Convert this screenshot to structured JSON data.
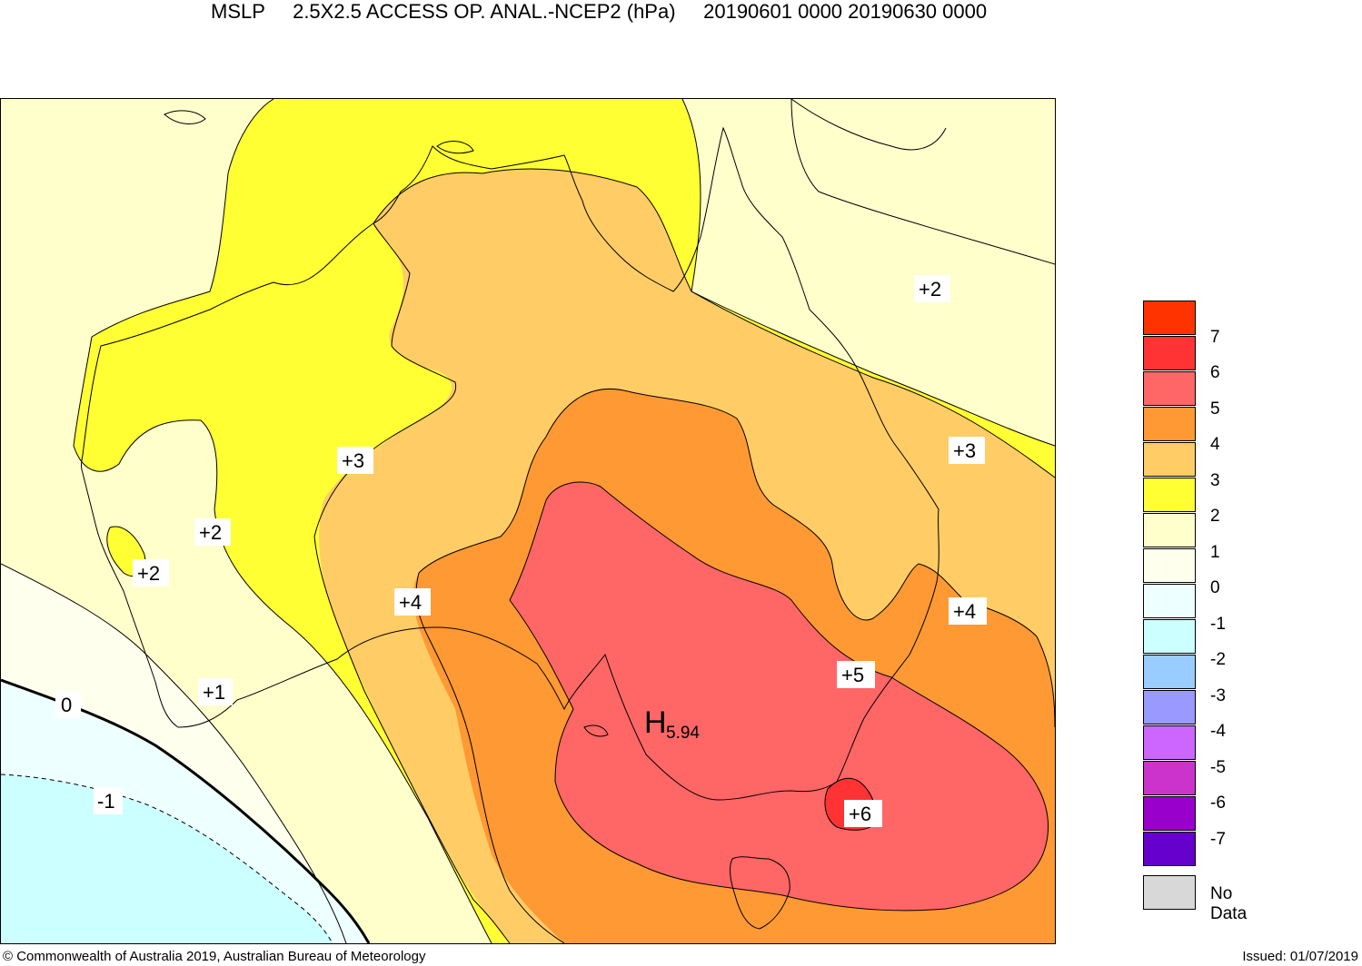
{
  "header": {
    "variable": "MSLP",
    "product": "2.5X2.5 ACCESS OP. ANAL.-NCEP2 (hPa)",
    "period": "20190601 0000 20190630 0000"
  },
  "map": {
    "region": "Australia",
    "contour_labels": [
      "+2",
      "+3",
      "+2",
      "+2",
      "+4",
      "+1",
      "0",
      "-1",
      "+3",
      "+4",
      "+5",
      "+6"
    ],
    "high": {
      "letter": "H",
      "value": "5.94"
    }
  },
  "legend": {
    "items": [
      {
        "label": "7",
        "color": "#ff3300"
      },
      {
        "label": "6",
        "color": "#ff3333"
      },
      {
        "label": "5",
        "color": "#ff6666"
      },
      {
        "label": "4",
        "color": "#ff9933"
      },
      {
        "label": "3",
        "color": "#ffcc66"
      },
      {
        "label": "2",
        "color": "#ffff33"
      },
      {
        "label": "1",
        "color": "#ffffcc"
      },
      {
        "label": "0",
        "color": "#ffffee"
      },
      {
        "label": "-1",
        "color": "#eeffff"
      },
      {
        "label": "-2",
        "color": "#ccffff"
      },
      {
        "label": "-3",
        "color": "#99ccff"
      },
      {
        "label": "-4",
        "color": "#9999ff"
      },
      {
        "label": "-5",
        "color": "#cc66ff"
      },
      {
        "label": "-6",
        "color": "#cc33cc"
      },
      {
        "label": "-7",
        "color": "#9900cc"
      },
      {
        "label": "",
        "color": "#6600cc"
      },
      {
        "label": "No Data",
        "color": "#d8d8d8"
      }
    ]
  },
  "footer": {
    "copyright": "© Commonwealth of Australia 2019, Australian Bureau of Meteorology",
    "issued": "Issued: 01/07/2019"
  }
}
